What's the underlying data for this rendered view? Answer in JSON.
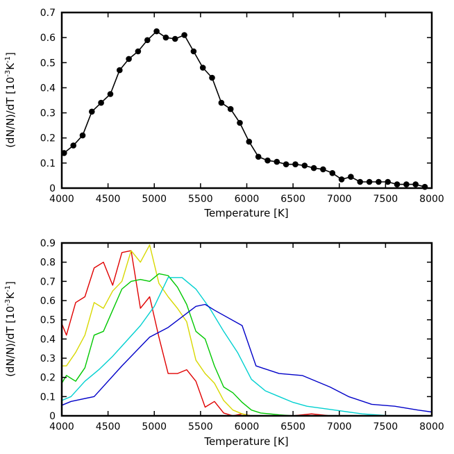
{
  "chart_data": [
    {
      "type": "line",
      "title": "",
      "xlabel": "Temperature [K]",
      "ylabel": {
        "base": "(dN/N)/dT [10",
        "exp1": "-3",
        "mid": "K",
        "exp2": "-1",
        "end": "]"
      },
      "xlim": [
        4000,
        8000
      ],
      "ylim": [
        0,
        0.7
      ],
      "xticks": [
        4000,
        4500,
        5000,
        5500,
        6000,
        6500,
        7000,
        7500,
        8000
      ],
      "yticks": [
        0,
        0.1,
        0.2,
        0.3,
        0.4,
        0.5,
        0.6,
        0.7
      ],
      "ytick_labels": [
        "0",
        "0.1",
        "0.2",
        "0.3",
        "0.4",
        "0.5",
        "0.6",
        "0.7"
      ],
      "markers": true,
      "grid": false,
      "series": [
        {
          "color": "#000000",
          "x": [
            4025,
            4125,
            4225,
            4325,
            4425,
            4525,
            4625,
            4725,
            4825,
            4925,
            5025,
            5125,
            5225,
            5325,
            5425,
            5525,
            5625,
            5725,
            5825,
            5925,
            6025,
            6125,
            6225,
            6325,
            6425,
            6525,
            6625,
            6725,
            6825,
            6925,
            7025,
            7125,
            7225,
            7325,
            7425,
            7525,
            7625,
            7725,
            7825,
            7925
          ],
          "y": [
            0.14,
            0.17,
            0.21,
            0.305,
            0.34,
            0.375,
            0.47,
            0.515,
            0.545,
            0.59,
            0.625,
            0.6,
            0.595,
            0.61,
            0.545,
            0.48,
            0.44,
            0.34,
            0.315,
            0.26,
            0.185,
            0.125,
            0.11,
            0.105,
            0.095,
            0.095,
            0.09,
            0.08,
            0.075,
            0.06,
            0.035,
            0.045,
            0.025,
            0.025,
            0.025,
            0.025,
            0.015,
            0.015,
            0.015,
            0.005
          ]
        }
      ]
    },
    {
      "type": "line",
      "title": "",
      "xlabel": "Temperature [K]",
      "ylabel": {
        "base": "(dN/N)/dT [10",
        "exp1": "-3",
        "mid": "K",
        "exp2": "-1",
        "end": "]"
      },
      "xlim": [
        4000,
        8000
      ],
      "ylim": [
        0,
        0.9
      ],
      "xticks": [
        4000,
        4500,
        5000,
        5500,
        6000,
        6500,
        7000,
        7500,
        8000
      ],
      "yticks": [
        0,
        0.1,
        0.2,
        0.3,
        0.4,
        0.5,
        0.6,
        0.7,
        0.8,
        0.9
      ],
      "ytick_labels": [
        "0",
        "0.1",
        "0.2",
        "0.3",
        "0.4",
        "0.5",
        "0.6",
        "0.7",
        "0.8",
        "0.9"
      ],
      "markers": false,
      "grid": false,
      "series": [
        {
          "color": "#e00000",
          "x": [
            4000,
            4050,
            4150,
            4250,
            4350,
            4450,
            4550,
            4650,
            4750,
            4850,
            4950,
            5050,
            5150,
            5250,
            5350,
            5450,
            5550,
            5650,
            5750,
            5850,
            5950,
            6050,
            6150,
            6300,
            6500,
            6700,
            6900,
            7000
          ],
          "y": [
            0.48,
            0.42,
            0.59,
            0.62,
            0.77,
            0.8,
            0.68,
            0.85,
            0.86,
            0.56,
            0.62,
            0.41,
            0.22,
            0.22,
            0.24,
            0.18,
            0.045,
            0.075,
            0.015,
            0.0,
            0.01,
            0.0,
            0.0,
            0.0,
            0.0,
            0.01,
            0.0,
            0.0
          ]
        },
        {
          "color": "#d8d800",
          "x": [
            4000,
            4050,
            4150,
            4250,
            4350,
            4450,
            4550,
            4650,
            4750,
            4850,
            4950,
            5050,
            5150,
            5250,
            5350,
            5450,
            5550,
            5650,
            5750,
            5850,
            5950,
            6050,
            6150,
            6250,
            6350,
            6500,
            6700,
            6900,
            7000
          ],
          "y": [
            0.26,
            0.26,
            0.33,
            0.42,
            0.59,
            0.56,
            0.65,
            0.7,
            0.86,
            0.8,
            0.89,
            0.69,
            0.62,
            0.56,
            0.49,
            0.29,
            0.22,
            0.17,
            0.08,
            0.03,
            0.01,
            0.0,
            0.0,
            0.0,
            0.0,
            0.0,
            0.0,
            0.0,
            0.0
          ]
        },
        {
          "color": "#00c800",
          "x": [
            4000,
            4050,
            4150,
            4250,
            4350,
            4450,
            4550,
            4650,
            4750,
            4850,
            4950,
            5050,
            5150,
            5250,
            5350,
            5450,
            5550,
            5650,
            5750,
            5850,
            5950,
            6050,
            6150,
            6250,
            6350,
            6500,
            6700,
            6900,
            7000
          ],
          "y": [
            0.17,
            0.21,
            0.18,
            0.25,
            0.42,
            0.44,
            0.55,
            0.66,
            0.7,
            0.71,
            0.7,
            0.74,
            0.73,
            0.67,
            0.58,
            0.44,
            0.4,
            0.26,
            0.15,
            0.12,
            0.07,
            0.03,
            0.015,
            0.01,
            0.005,
            0.0,
            0.0,
            0.0,
            0.0
          ]
        },
        {
          "color": "#00d0d0",
          "x": [
            4000,
            4100,
            4250,
            4400,
            4550,
            4700,
            4850,
            5000,
            5150,
            5300,
            5450,
            5600,
            5750,
            5900,
            6050,
            6200,
            6350,
            6500,
            6650,
            6800,
            6950,
            7100,
            7250,
            7400,
            7550
          ],
          "y": [
            0.08,
            0.1,
            0.18,
            0.24,
            0.31,
            0.39,
            0.47,
            0.57,
            0.72,
            0.72,
            0.66,
            0.56,
            0.44,
            0.33,
            0.19,
            0.13,
            0.1,
            0.07,
            0.05,
            0.04,
            0.03,
            0.02,
            0.01,
            0.005,
            0.0
          ]
        },
        {
          "color": "#0000c8",
          "x": [
            4000,
            4100,
            4350,
            4650,
            4950,
            5150,
            5450,
            5550,
            5650,
            5950,
            6100,
            6350,
            6600,
            6900,
            7100,
            7350,
            7600,
            7850,
            8000
          ],
          "y": [
            0.055,
            0.075,
            0.1,
            0.26,
            0.41,
            0.46,
            0.57,
            0.58,
            0.55,
            0.47,
            0.26,
            0.22,
            0.21,
            0.15,
            0.1,
            0.06,
            0.05,
            0.03,
            0.02
          ]
        }
      ]
    }
  ]
}
